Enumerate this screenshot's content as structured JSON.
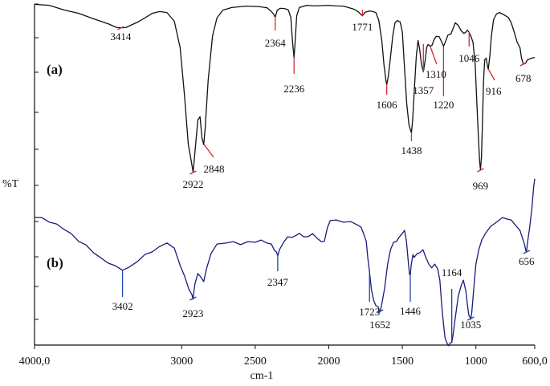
{
  "chart_data": {
    "type": "line",
    "xlabel": "cm-1",
    "ylabel": "%T",
    "xlim": [
      4000,
      600
    ],
    "x_reversed": true,
    "x_ticks": [
      4000,
      3000,
      2500,
      2000,
      1500,
      1000,
      600
    ],
    "x_tick_labels": [
      "4000,0",
      "3000",
      "2500",
      "2000",
      "1500",
      "1000",
      "600,0"
    ],
    "grid": false,
    "panels": [
      {
        "label": "(a)",
        "color": "#111111",
        "peak_marker_color": "#d9282f",
        "peaks": [
          "3414",
          "2364",
          "2236",
          "1771",
          "2922",
          "2848",
          "1606",
          "1438",
          "1357",
          "1310",
          "1220",
          "1046",
          "969",
          "916",
          "678"
        ]
      },
      {
        "label": "(b)",
        "color": "#1a1a7a",
        "peak_marker_color": "#2244aa",
        "peaks": [
          "3402",
          "2923",
          "2347",
          "1723",
          "1652",
          "1446",
          "1164",
          "1035",
          "656"
        ]
      }
    ]
  }
}
